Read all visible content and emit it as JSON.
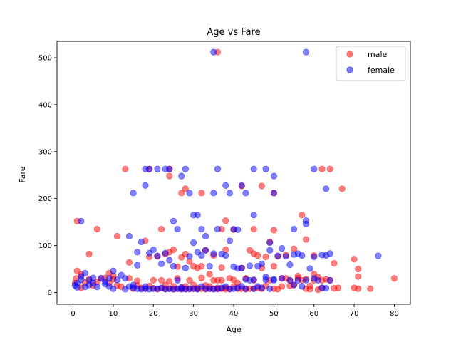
{
  "chart_data": {
    "type": "scatter",
    "title": "Age vs Fare",
    "xlabel": "Age",
    "ylabel": "Fare",
    "xlim": [
      -4,
      84
    ],
    "ylim": [
      -25,
      535
    ],
    "xticks": [
      0,
      10,
      20,
      30,
      40,
      50,
      60,
      70,
      80
    ],
    "yticks": [
      0,
      100,
      200,
      300,
      400,
      500
    ],
    "grid": false,
    "legend_position": "top-right",
    "series": [
      {
        "name": "male",
        "color": "#ff0000",
        "alpha": 0.5,
        "points": [
          [
            1,
            152
          ],
          [
            6,
            135
          ],
          [
            11,
            120
          ],
          [
            13,
            263
          ],
          [
            19,
            263
          ],
          [
            24,
            248
          ],
          [
            24,
            263
          ],
          [
            27,
            212
          ],
          [
            28,
            221
          ],
          [
            32,
            212
          ],
          [
            36,
            512
          ],
          [
            37,
            135
          ],
          [
            38,
            153
          ],
          [
            40,
            134
          ],
          [
            42,
            227
          ],
          [
            45,
            135
          ],
          [
            47,
            227
          ],
          [
            50,
            212
          ],
          [
            50,
            133
          ],
          [
            57,
            165
          ],
          [
            58,
            113
          ],
          [
            60,
            79
          ],
          [
            62,
            263
          ],
          [
            64,
            263
          ],
          [
            67,
            221
          ],
          [
            70,
            71
          ],
          [
            71,
            50
          ],
          [
            71,
            34
          ],
          [
            74,
            8
          ],
          [
            80,
            30
          ],
          [
            4,
            82
          ],
          [
            1,
            46
          ],
          [
            2,
            39
          ],
          [
            4,
            29
          ],
          [
            6,
            23
          ],
          [
            8,
            31
          ],
          [
            9,
            41
          ],
          [
            10,
            28
          ],
          [
            12,
            12
          ],
          [
            14,
            64
          ],
          [
            15,
            8
          ],
          [
            16,
            25
          ],
          [
            17,
            10
          ],
          [
            18,
            110
          ],
          [
            19,
            76
          ],
          [
            20,
            9
          ],
          [
            21,
            77
          ],
          [
            22,
            135
          ],
          [
            23,
            82
          ],
          [
            24,
            86
          ],
          [
            25,
            91
          ],
          [
            26,
            55
          ],
          [
            27,
            75
          ],
          [
            28,
            82
          ],
          [
            29,
            66
          ],
          [
            30,
            56
          ],
          [
            31,
            52
          ],
          [
            32,
            31
          ],
          [
            33,
            90
          ],
          [
            34,
            39
          ],
          [
            35,
            79
          ],
          [
            36,
            26
          ],
          [
            37,
            53
          ],
          [
            38,
            91
          ],
          [
            39,
            30
          ],
          [
            40,
            27
          ],
          [
            41,
            20
          ],
          [
            42,
            52
          ],
          [
            43,
            30
          ],
          [
            44,
            90
          ],
          [
            45,
            83
          ],
          [
            46,
            79
          ],
          [
            47,
            52
          ],
          [
            48,
            76
          ],
          [
            49,
            108
          ],
          [
            50,
            56
          ],
          [
            51,
            77
          ],
          [
            52,
            30
          ],
          [
            53,
            80
          ],
          [
            54,
            14
          ],
          [
            55,
            93
          ],
          [
            56,
            35
          ],
          [
            57,
            26
          ],
          [
            58,
            29
          ],
          [
            59,
            14
          ],
          [
            60,
            39
          ],
          [
            61,
            33
          ],
          [
            62,
            10
          ],
          [
            63,
            28
          ],
          [
            64,
            26
          ],
          [
            65,
            62
          ],
          [
            65,
            9
          ],
          [
            66,
            10
          ],
          [
            70,
            10
          ],
          [
            71,
            8
          ],
          [
            0.5,
            20
          ],
          [
            0.8,
            30
          ],
          [
            2,
            10
          ],
          [
            3,
            21
          ],
          [
            5,
            15
          ],
          [
            7,
            30
          ],
          [
            9,
            20
          ],
          [
            10,
            35
          ],
          [
            11,
            15
          ],
          [
            14,
            30
          ],
          [
            16,
            15
          ],
          [
            18,
            8
          ],
          [
            19,
            14
          ],
          [
            20,
            26
          ],
          [
            21,
            7
          ],
          [
            22,
            9
          ],
          [
            22,
            26
          ],
          [
            23,
            8
          ],
          [
            23,
            16
          ],
          [
            24,
            8
          ],
          [
            24,
            24
          ],
          [
            25,
            7
          ],
          [
            25,
            13
          ],
          [
            26,
            8
          ],
          [
            26,
            30
          ],
          [
            27,
            10
          ],
          [
            27,
            7
          ],
          [
            28,
            8
          ],
          [
            28,
            13
          ],
          [
            29,
            7
          ],
          [
            29,
            26
          ],
          [
            30,
            8
          ],
          [
            30,
            16
          ],
          [
            31,
            7
          ],
          [
            31,
            10
          ],
          [
            32,
            8
          ],
          [
            32,
            56
          ],
          [
            33,
            7
          ],
          [
            33,
            15
          ],
          [
            34,
            13
          ],
          [
            34,
            8
          ],
          [
            35,
            8
          ],
          [
            35,
            26
          ],
          [
            36,
            7
          ],
          [
            36,
            10
          ],
          [
            37,
            8
          ],
          [
            37,
            26
          ],
          [
            38,
            7
          ],
          [
            38,
            10
          ],
          [
            39,
            8
          ],
          [
            40,
            13
          ],
          [
            41,
            8
          ],
          [
            42,
            8
          ],
          [
            43,
            7
          ],
          [
            44,
            8
          ],
          [
            45,
            8
          ],
          [
            45,
            26
          ],
          [
            46,
            10
          ],
          [
            47,
            8
          ],
          [
            48,
            14
          ],
          [
            49,
            26
          ],
          [
            50,
            8
          ],
          [
            51,
            7
          ],
          [
            52,
            13
          ],
          [
            53,
            30
          ],
          [
            54,
            26
          ],
          [
            55,
            16
          ],
          [
            56,
            30
          ],
          [
            58,
            8
          ],
          [
            59,
            7
          ],
          [
            60,
            26
          ],
          [
            61,
            6
          ],
          [
            62,
            26
          ]
        ]
      },
      {
        "name": "female",
        "color": "#0000ff",
        "alpha": 0.5,
        "points": [
          [
            2,
            152
          ],
          [
            15,
            212
          ],
          [
            16,
            86
          ],
          [
            18,
            263
          ],
          [
            18,
            228
          ],
          [
            19,
            263
          ],
          [
            21,
            263
          ],
          [
            23,
            263
          ],
          [
            24,
            263
          ],
          [
            25,
            152
          ],
          [
            26,
            135
          ],
          [
            27,
            248
          ],
          [
            28,
            263
          ],
          [
            29,
            212
          ],
          [
            30,
            165
          ],
          [
            31,
            165
          ],
          [
            32,
            135
          ],
          [
            33,
            120
          ],
          [
            35,
            512
          ],
          [
            35,
            212
          ],
          [
            36,
            263
          ],
          [
            38,
            228
          ],
          [
            39,
            212
          ],
          [
            40,
            135
          ],
          [
            41,
            134
          ],
          [
            42,
            228
          ],
          [
            43,
            212
          ],
          [
            45,
            165
          ],
          [
            45,
            263
          ],
          [
            48,
            263
          ],
          [
            49,
            106
          ],
          [
            50,
            248
          ],
          [
            50,
            212
          ],
          [
            55,
            135
          ],
          [
            58,
            153
          ],
          [
            58,
            146
          ],
          [
            58,
            512
          ],
          [
            60,
            263
          ],
          [
            63,
            221
          ],
          [
            64,
            83
          ],
          [
            76,
            78
          ],
          [
            1,
            20
          ],
          [
            2,
            34
          ],
          [
            3,
            41
          ],
          [
            4,
            26
          ],
          [
            5,
            31
          ],
          [
            6,
            12
          ],
          [
            8,
            23
          ],
          [
            9,
            30
          ],
          [
            10,
            46
          ],
          [
            12,
            37
          ],
          [
            13,
            30
          ],
          [
            14,
            120
          ],
          [
            15,
            10
          ],
          [
            16,
            58
          ],
          [
            17,
            108
          ],
          [
            18,
            13
          ],
          [
            19,
            84
          ],
          [
            20,
            91
          ],
          [
            21,
            78
          ],
          [
            22,
            61
          ],
          [
            23,
            84
          ],
          [
            24,
            69
          ],
          [
            25,
            56
          ],
          [
            26,
            26
          ],
          [
            27,
            11
          ],
          [
            28,
            52
          ],
          [
            29,
            77
          ],
          [
            30,
            106
          ],
          [
            31,
            86
          ],
          [
            32,
            79
          ],
          [
            33,
            90
          ],
          [
            34,
            56
          ],
          [
            35,
            83
          ],
          [
            36,
            135
          ],
          [
            37,
            82
          ],
          [
            38,
            79
          ],
          [
            39,
            110
          ],
          [
            40,
            55
          ],
          [
            41,
            51
          ],
          [
            42,
            52
          ],
          [
            43,
            28
          ],
          [
            44,
            57
          ],
          [
            45,
            27
          ],
          [
            46,
            56
          ],
          [
            47,
            61
          ],
          [
            48,
            33
          ],
          [
            49,
            90
          ],
          [
            50,
            28
          ],
          [
            51,
            78
          ],
          [
            52,
            94
          ],
          [
            53,
            77
          ],
          [
            54,
            59
          ],
          [
            55,
            81
          ],
          [
            56,
            83
          ],
          [
            57,
            79
          ],
          [
            58,
            26
          ],
          [
            59,
            51
          ],
          [
            60,
            76
          ],
          [
            61,
            26
          ],
          [
            62,
            80
          ],
          [
            63,
            79
          ],
          [
            64,
            26
          ],
          [
            0.5,
            15
          ],
          [
            1,
            11
          ],
          [
            2,
            27
          ],
          [
            3,
            12
          ],
          [
            4,
            16
          ],
          [
            5,
            20
          ],
          [
            7,
            30
          ],
          [
            8,
            18
          ],
          [
            9,
            13
          ],
          [
            10,
            8
          ],
          [
            11,
            27
          ],
          [
            13,
            7
          ],
          [
            14,
            13
          ],
          [
            15,
            16
          ],
          [
            16,
            8
          ],
          [
            17,
            7
          ],
          [
            18,
            8
          ],
          [
            19,
            7
          ],
          [
            20,
            8
          ],
          [
            21,
            8
          ],
          [
            22,
            10
          ],
          [
            23,
            7
          ],
          [
            24,
            8
          ],
          [
            25,
            7
          ],
          [
            26,
            8
          ],
          [
            27,
            7
          ],
          [
            28,
            7
          ],
          [
            29,
            8
          ],
          [
            30,
            8
          ],
          [
            31,
            7
          ],
          [
            32,
            13
          ],
          [
            33,
            8
          ],
          [
            34,
            8
          ],
          [
            35,
            7
          ],
          [
            36,
            8
          ],
          [
            37,
            10
          ],
          [
            38,
            13
          ],
          [
            39,
            7
          ],
          [
            40,
            8
          ],
          [
            41,
            10
          ],
          [
            42,
            13
          ],
          [
            43,
            8
          ],
          [
            44,
            26
          ],
          [
            45,
            8
          ],
          [
            46,
            13
          ],
          [
            47,
            10
          ],
          [
            48,
            27
          ],
          [
            49,
            8
          ],
          [
            50,
            26
          ],
          [
            52,
            30
          ],
          [
            54,
            26
          ],
          [
            55,
            16
          ],
          [
            56,
            26
          ],
          [
            57,
            13
          ],
          [
            60,
            30
          ],
          [
            62,
            10
          ],
          [
            63,
            9
          ]
        ]
      }
    ]
  }
}
